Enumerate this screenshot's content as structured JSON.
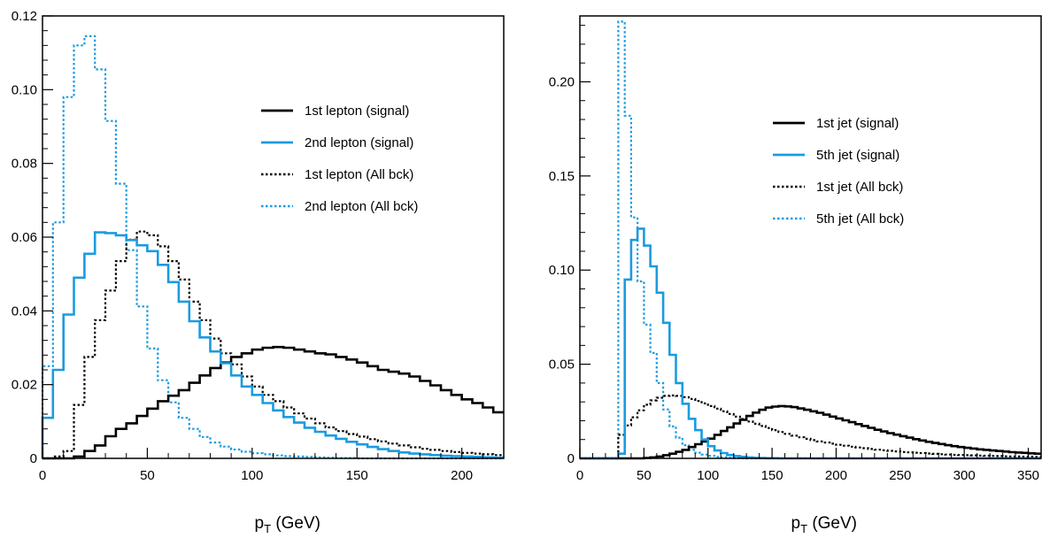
{
  "chart_data": [
    {
      "type": "line",
      "panel": "left",
      "xlabel": "p",
      "xlabel_sub": "T",
      "xlabel_suffix": " (GeV)",
      "xlim": [
        0,
        220
      ],
      "ylim": [
        0,
        0.12
      ],
      "x_ticks": [
        "0",
        "50",
        "100",
        "150",
        "200"
      ],
      "x_tick_values": [
        0,
        50,
        100,
        150,
        200
      ],
      "y_ticks": [
        "0",
        "0.02",
        "0.04",
        "0.06",
        "0.08",
        "0.10",
        "0.12"
      ],
      "y_tick_values": [
        0,
        0.02,
        0.04,
        0.06,
        0.08,
        0.1,
        0.12
      ],
      "bin_width": 5,
      "legend_position": "top-right",
      "series": [
        {
          "name": "1st lepton (signal)",
          "color": "#000000",
          "style": "solid",
          "values": [
            0,
            0,
            0,
            0.0005,
            0.002,
            0.0035,
            0.006,
            0.008,
            0.0095,
            0.0115,
            0.0135,
            0.0155,
            0.017,
            0.0185,
            0.0205,
            0.0225,
            0.0245,
            0.026,
            0.0275,
            0.0285,
            0.0295,
            0.03,
            0.0302,
            0.03,
            0.0295,
            0.029,
            0.0285,
            0.0282,
            0.0275,
            0.0268,
            0.026,
            0.025,
            0.024,
            0.0235,
            0.023,
            0.0222,
            0.021,
            0.0198,
            0.0185,
            0.0172,
            0.016,
            0.015,
            0.0138,
            0.0125
          ]
        },
        {
          "name": "2nd lepton (signal)",
          "color": "#1b9be0",
          "style": "solid",
          "values": [
            0.011,
            0.024,
            0.039,
            0.049,
            0.0555,
            0.0613,
            0.0611,
            0.0605,
            0.0592,
            0.0578,
            0.0562,
            0.0525,
            0.0478,
            0.0425,
            0.0372,
            0.0328,
            0.029,
            0.0258,
            0.0225,
            0.0195,
            0.0172,
            0.015,
            0.013,
            0.0112,
            0.0097,
            0.0083,
            0.0072,
            0.0062,
            0.0053,
            0.0045,
            0.0038,
            0.0031,
            0.0025,
            0.002,
            0.0016,
            0.0013,
            0.0011,
            0.0009,
            0.0007,
            0.0006,
            0.0005,
            0.0004,
            0.0003,
            0.0002
          ]
        },
        {
          "name": "1st lepton (All bck)",
          "color": "#000000",
          "style": "dotted",
          "values": [
            0,
            0.0005,
            0.002,
            0.0145,
            0.0275,
            0.0375,
            0.0455,
            0.0535,
            0.0593,
            0.0615,
            0.0605,
            0.0575,
            0.0535,
            0.0485,
            0.0425,
            0.0375,
            0.0325,
            0.0285,
            0.0255,
            0.0222,
            0.0195,
            0.0172,
            0.0155,
            0.0138,
            0.0122,
            0.0108,
            0.0095,
            0.0084,
            0.0074,
            0.0066,
            0.0059,
            0.0052,
            0.0046,
            0.004,
            0.0035,
            0.003,
            0.0026,
            0.0023,
            0.002,
            0.0017,
            0.0015,
            0.0013,
            0.0011,
            0.0009
          ]
        },
        {
          "name": "2nd lepton (All bck)",
          "color": "#1b9be0",
          "style": "dotted",
          "values": [
            0.025,
            0.064,
            0.098,
            0.112,
            0.1145,
            0.1055,
            0.0915,
            0.0745,
            0.0565,
            0.0412,
            0.0298,
            0.0212,
            0.0152,
            0.011,
            0.008,
            0.0058,
            0.0043,
            0.0032,
            0.0024,
            0.0018,
            0.0014,
            0.0011,
            0.0008,
            0.0006,
            0.0005,
            0.0004,
            0.0003,
            0.0002,
            0.0001,
            0.0001,
            0,
            0,
            0,
            0,
            0,
            0,
            0,
            0,
            0,
            0,
            0,
            0,
            0,
            0
          ]
        }
      ]
    },
    {
      "type": "line",
      "panel": "right",
      "xlabel": "p",
      "xlabel_sub": "T",
      "xlabel_suffix": " (GeV)",
      "xlim": [
        0,
        360
      ],
      "ylim": [
        0,
        0.235
      ],
      "x_ticks": [
        "0",
        "50",
        "100",
        "150",
        "200",
        "250",
        "300",
        "350"
      ],
      "x_tick_values": [
        0,
        50,
        100,
        150,
        200,
        250,
        300,
        350
      ],
      "y_ticks": [
        "0",
        "0.05",
        "0.10",
        "0.15",
        "0.20"
      ],
      "y_tick_values": [
        0,
        0.05,
        0.1,
        0.15,
        0.2
      ],
      "bin_width": 5,
      "legend_position": "top-right",
      "series": [
        {
          "name": "1st jet (signal)",
          "color": "#000000",
          "style": "solid",
          "values": [
            0,
            0,
            0,
            0,
            0,
            0,
            0,
            0,
            0,
            0,
            0.0002,
            0.0005,
            0.001,
            0.0017,
            0.0025,
            0.0035,
            0.0045,
            0.006,
            0.0075,
            0.009,
            0.0105,
            0.0125,
            0.0145,
            0.0165,
            0.0185,
            0.0205,
            0.0225,
            0.0243,
            0.0258,
            0.027,
            0.0275,
            0.0278,
            0.0276,
            0.0272,
            0.0265,
            0.0258,
            0.025,
            0.0242,
            0.0232,
            0.0222,
            0.0212,
            0.0202,
            0.0192,
            0.0182,
            0.0172,
            0.0162,
            0.0152,
            0.0143,
            0.0134,
            0.0126,
            0.0118,
            0.011,
            0.0102,
            0.0095,
            0.0088,
            0.0082,
            0.0076,
            0.007,
            0.0065,
            0.006,
            0.0056,
            0.0052,
            0.0048,
            0.0045,
            0.0042,
            0.0039,
            0.0036,
            0.0033,
            0.0031,
            0.0029,
            0.0027,
            0.0025
          ]
        },
        {
          "name": "5th jet (signal)",
          "color": "#1b9be0",
          "style": "solid",
          "values": [
            0,
            0,
            0,
            0,
            0,
            0,
            0.0025,
            0.095,
            0.116,
            0.122,
            0.113,
            0.102,
            0.088,
            0.072,
            0.055,
            0.04,
            0.029,
            0.021,
            0.015,
            0.01,
            0.0065,
            0.0042,
            0.0028,
            0.0018,
            0.0012,
            0.0008,
            0.0005,
            0.0003,
            0.0002,
            0.0001,
            0.0001,
            0,
            0,
            0,
            0,
            0,
            0,
            0,
            0,
            0,
            0,
            0,
            0,
            0,
            0,
            0,
            0,
            0,
            0,
            0,
            0,
            0,
            0,
            0,
            0,
            0,
            0,
            0,
            0,
            0,
            0,
            0,
            0,
            0,
            0,
            0,
            0,
            0,
            0,
            0,
            0,
            0
          ]
        },
        {
          "name": "1st jet (All bck)",
          "color": "#000000",
          "style": "dotted",
          "values": [
            0,
            0,
            0,
            0,
            0,
            0,
            0.0125,
            0.0175,
            0.0218,
            0.0255,
            0.0285,
            0.0308,
            0.0322,
            0.0332,
            0.0334,
            0.0332,
            0.0325,
            0.0316,
            0.0305,
            0.0292,
            0.0278,
            0.0264,
            0.025,
            0.0236,
            0.0222,
            0.0209,
            0.0196,
            0.0184,
            0.0172,
            0.0161,
            0.015,
            0.014,
            0.013,
            0.0121,
            0.0112,
            0.0104,
            0.0097,
            0.009,
            0.0084,
            0.0078,
            0.0072,
            0.0067,
            0.0062,
            0.0058,
            0.0054,
            0.005,
            0.0046,
            0.0043,
            0.004,
            0.0037,
            0.0034,
            0.0032,
            0.003,
            0.0028,
            0.0026,
            0.0024,
            0.0022,
            0.002,
            0.0019,
            0.0018,
            0.0017,
            0.0016,
            0.0015,
            0.0014,
            0.0013,
            0.0012,
            0.0011,
            0.001,
            0.001,
            0.0009,
            0.0009,
            0.0008
          ]
        },
        {
          "name": "5th jet (All bck)",
          "color": "#1b9be0",
          "style": "dotted",
          "values": [
            0,
            0,
            0,
            0,
            0,
            0,
            0.232,
            0.182,
            0.128,
            0.094,
            0.071,
            0.056,
            0.04,
            0.026,
            0.017,
            0.011,
            0.007,
            0.0045,
            0.003,
            0.002,
            0.0013,
            0.0008,
            0.0005,
            0.0003,
            0.0002,
            0.0001,
            0,
            0,
            0,
            0,
            0,
            0,
            0,
            0,
            0,
            0,
            0,
            0,
            0,
            0,
            0,
            0,
            0,
            0,
            0,
            0,
            0,
            0,
            0,
            0,
            0,
            0,
            0,
            0,
            0,
            0,
            0,
            0,
            0,
            0,
            0,
            0,
            0,
            0,
            0,
            0,
            0,
            0,
            0,
            0,
            0,
            0
          ]
        }
      ]
    }
  ]
}
